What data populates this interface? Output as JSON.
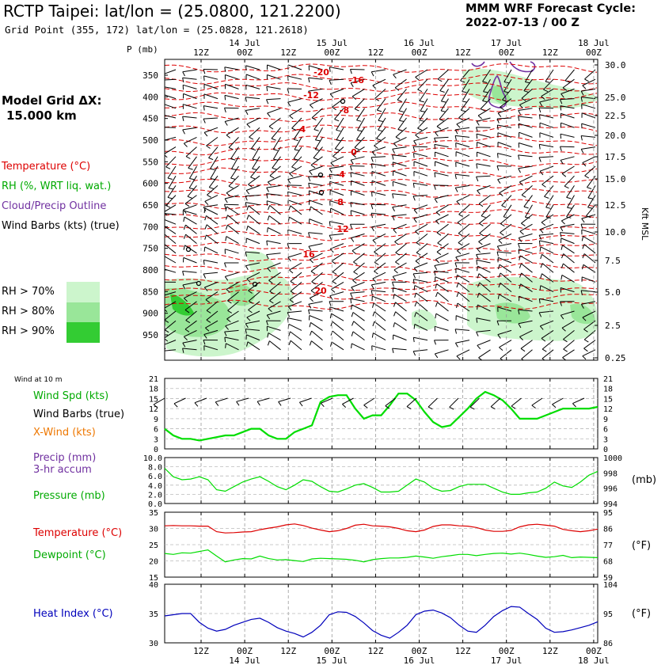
{
  "header": {
    "title": "RCTP Taipei:  lat/lon = (25.0800, 121.2200)",
    "subtitle": "Grid Point (355, 172) lat/lon = (25.0828, 121.2618)",
    "cycle_line1": "MMM WRF Forecast Cycle:",
    "cycle_line2": "2022-07-13 / 00  Z",
    "model_grid_line1": "Model Grid ΔX:",
    "model_grid_line2": "15.000 km"
  },
  "legend": {
    "temperature": "Temperature (°C)",
    "rh": "RH (%, WRT liq. wat.)",
    "cloud": "Cloud/Precip Outline",
    "wind_barbs": "Wind Barbs (kts) (true)",
    "rh70": "RH > 70%",
    "rh80": "RH > 80%",
    "rh90": "RH > 90%"
  },
  "colors": {
    "temperature": "#dd0000",
    "rh_text": "#00aa00",
    "cloud": "#7030a0",
    "rh70": "#ccf5cc",
    "rh80": "#99e699",
    "rh90": "#33cc33",
    "wind_speed": "#00dd00",
    "crosswind": "#ee7700",
    "heat_index": "#0000bb"
  },
  "time_axis": {
    "top_labels": [
      "12Z",
      "00Z",
      "12Z",
      "00Z",
      "12Z",
      "00Z",
      "12Z",
      "00Z",
      "12Z",
      "00Z"
    ],
    "day_labels": [
      "14 Jul",
      "15 Jul",
      "16 Jul",
      "17 Jul",
      "18 Jul"
    ]
  },
  "chart_data": [
    {
      "type": "line",
      "id": "cross_section",
      "x_label": "P (mb)",
      "pressure_ticks": [
        350,
        400,
        450,
        500,
        550,
        600,
        650,
        700,
        750,
        800,
        850,
        900,
        950
      ],
      "height_label": "Kft MSL",
      "height_ticks": [
        "30.0",
        "25.0",
        "22.5",
        "20.0",
        "17.5",
        "15.0",
        "12.5",
        "10.0",
        "7.5",
        "5.0",
        "2.5",
        "0.25"
      ],
      "temperature_contour_labels": [
        "-20",
        "-16",
        "-12",
        "-8",
        "-4",
        "0",
        "4",
        "8",
        "12",
        "16",
        "20"
      ]
    },
    {
      "type": "line",
      "id": "surface_wind",
      "title": "Wind at 10 m",
      "series_labels": {
        "speed": "Wind Spd (kts)",
        "barbs": "Wind Barbs (true)",
        "xwind": "X-Wind (kts)"
      },
      "y_ticks": [
        21,
        18,
        15,
        12,
        9,
        6,
        3,
        0
      ],
      "ylim": [
        0,
        21
      ],
      "series": [
        {
          "name": "Wind Spd (kts)",
          "x_hours": [
            0,
            6,
            12,
            18,
            24,
            30,
            36,
            42,
            48,
            54,
            60,
            66,
            72,
            78,
            84,
            90,
            96,
            102,
            108,
            114,
            120,
            126,
            132,
            138,
            144,
            150,
            156,
            162,
            168,
            174,
            180,
            186,
            192,
            198,
            204,
            210,
            216,
            222,
            228,
            234,
            240,
            246,
            252,
            258,
            264,
            270,
            276,
            282,
            288,
            294,
            300
          ],
          "values": [
            6,
            4,
            3,
            3,
            2.5,
            3,
            3.5,
            4,
            4,
            5,
            6,
            6,
            4,
            3,
            3,
            5,
            6,
            7,
            14,
            15.5,
            16,
            16,
            12,
            9,
            10,
            10,
            13,
            16.5,
            16.5,
            14.5,
            11,
            8,
            6.5,
            7,
            9.5,
            12,
            15,
            17,
            16,
            14.5,
            12,
            9,
            9,
            9,
            10,
            11,
            12,
            12,
            12,
            12,
            12.5
          ]
        }
      ]
    },
    {
      "type": "line",
      "id": "precip_pressure",
      "series_labels": {
        "precip": "Precip (mm)",
        "accum": "3-hr accum",
        "pressure": "Pressure (mb)"
      },
      "left_ticks": [
        "10.0",
        "8.0",
        "6.0",
        "4.0",
        "2.0",
        "0.0"
      ],
      "right_ticks": [
        "1000",
        "998",
        "996",
        "994"
      ],
      "unit_right": "(mb)",
      "ylim": [
        994,
        1000
      ],
      "series": [
        {
          "name": "Pressure (mb)",
          "x_hours": [
            0,
            6,
            12,
            18,
            24,
            30,
            36,
            42,
            48,
            54,
            60,
            66,
            72,
            78,
            84,
            90,
            96,
            102,
            108,
            114,
            120,
            126,
            132,
            138,
            144,
            150,
            156,
            162,
            168,
            174,
            180,
            186,
            192,
            198,
            204,
            210,
            216,
            222,
            228,
            234,
            240,
            246,
            252,
            258,
            264,
            270,
            276,
            282,
            288,
            294,
            300
          ],
          "values": [
            998.6,
            997.5,
            997.1,
            997.2,
            997.5,
            997.1,
            995.8,
            995.6,
            996.2,
            996.8,
            997.2,
            997.5,
            996.9,
            996.2,
            995.8,
            996.4,
            997.1,
            996.9,
            996.2,
            995.6,
            995.5,
            995.9,
            996.4,
            996.6,
            996.1,
            995.5,
            995.5,
            995.6,
            996.4,
            997.2,
            996.8,
            996.0,
            995.6,
            995.7,
            996.2,
            996.5,
            996.5,
            996.5,
            996.0,
            995.5,
            995.2,
            995.2,
            995.4,
            995.5,
            996.0,
            996.8,
            996.3,
            996.1,
            996.8,
            997.7,
            998.2
          ]
        }
      ]
    },
    {
      "type": "line",
      "id": "temp_dewpoint",
      "series_labels": {
        "temperature": "Temperature (°C)",
        "dewpoint": "Dewpoint (°C)"
      },
      "left_ticks": [
        35,
        30,
        25,
        20,
        15
      ],
      "right_ticks": [
        95,
        86,
        77,
        68,
        59
      ],
      "unit_right": "(°F)",
      "ylim": [
        15,
        35
      ],
      "series": [
        {
          "name": "Temperature (°C)",
          "x_hours": [
            0,
            6,
            12,
            18,
            24,
            30,
            36,
            42,
            48,
            54,
            60,
            66,
            72,
            78,
            84,
            90,
            96,
            102,
            108,
            114,
            120,
            126,
            132,
            138,
            144,
            150,
            156,
            162,
            168,
            174,
            180,
            186,
            192,
            198,
            204,
            210,
            216,
            222,
            228,
            234,
            240,
            246,
            252,
            258,
            264,
            270,
            276,
            282,
            288,
            294,
            300
          ],
          "values": [
            30.8,
            30.9,
            30.8,
            30.8,
            30.7,
            30.7,
            29,
            28.6,
            28.7,
            28.9,
            29.0,
            29.6,
            30.1,
            30.5,
            31.1,
            31.4,
            30.9,
            30.1,
            29.5,
            29.0,
            29.3,
            30.0,
            31.0,
            31.3,
            30.8,
            30.7,
            30.5,
            30.0,
            29.3,
            29.0,
            29.5,
            30.6,
            31.1,
            31.1,
            30.8,
            30.7,
            30.3,
            29.5,
            29.1,
            29.1,
            29.4,
            30.5,
            31.1,
            31.3,
            31.0,
            30.7,
            29.7,
            29.3,
            29.0,
            29.3,
            29.8
          ]
        },
        {
          "name": "Dewpoint (°C)",
          "x_hours": [
            0,
            6,
            12,
            18,
            24,
            30,
            36,
            42,
            48,
            54,
            60,
            66,
            72,
            78,
            84,
            90,
            96,
            102,
            108,
            114,
            120,
            126,
            132,
            138,
            144,
            150,
            156,
            162,
            168,
            174,
            180,
            186,
            192,
            198,
            204,
            210,
            216,
            222,
            228,
            234,
            240,
            246,
            252,
            258,
            264,
            270,
            276,
            282,
            288,
            294,
            300
          ],
          "values": [
            22.3,
            22.0,
            22.5,
            22.4,
            22.9,
            23.4,
            21.5,
            19.7,
            20.3,
            20.7,
            20.6,
            21.5,
            20.7,
            20.3,
            20.4,
            20.1,
            19.8,
            20.6,
            20.8,
            20.7,
            20.6,
            20.5,
            20.2,
            19.7,
            20.4,
            20.7,
            20.9,
            20.9,
            21.1,
            21.5,
            21.2,
            20.8,
            21.3,
            21.6,
            22.0,
            22.0,
            21.6,
            22.0,
            22.3,
            22.4,
            22.1,
            22.4,
            22.0,
            21.5,
            21.1,
            21.3,
            21.7,
            21.0,
            21.2,
            21.1,
            21.0
          ]
        }
      ]
    },
    {
      "type": "line",
      "id": "heat_index",
      "series_labels": {
        "heat_index": "Heat Index (°C)"
      },
      "left_ticks": [
        40,
        35,
        30
      ],
      "right_ticks": [
        104,
        95,
        86
      ],
      "unit_right": "(°F)",
      "ylim": [
        30,
        40
      ],
      "series": [
        {
          "name": "Heat Index (°C)",
          "x_hours": [
            0,
            6,
            12,
            18,
            24,
            30,
            36,
            42,
            48,
            54,
            60,
            66,
            72,
            78,
            84,
            90,
            96,
            102,
            108,
            114,
            120,
            126,
            132,
            138,
            144,
            150,
            156,
            162,
            168,
            174,
            180,
            186,
            192,
            198,
            204,
            210,
            216,
            222,
            228,
            234,
            240,
            246,
            252,
            258,
            264,
            270,
            276,
            282,
            288,
            294,
            300
          ],
          "values": [
            34.6,
            34.8,
            35.0,
            35.0,
            33.5,
            32.5,
            32.0,
            32.3,
            33.0,
            33.5,
            34.0,
            34.2,
            33.5,
            32.6,
            32.0,
            31.6,
            31.0,
            31.8,
            33.0,
            34.8,
            35.3,
            35.2,
            34.5,
            33.4,
            32.1,
            31.3,
            30.8,
            31.8,
            33.0,
            34.8,
            35.4,
            35.6,
            35.1,
            34.3,
            33.0,
            32.0,
            31.8,
            33.0,
            34.5,
            35.5,
            36.2,
            36.1,
            35.0,
            34.0,
            32.5,
            31.8,
            31.9,
            32.2,
            32.6,
            33.0,
            33.6
          ]
        }
      ]
    }
  ]
}
